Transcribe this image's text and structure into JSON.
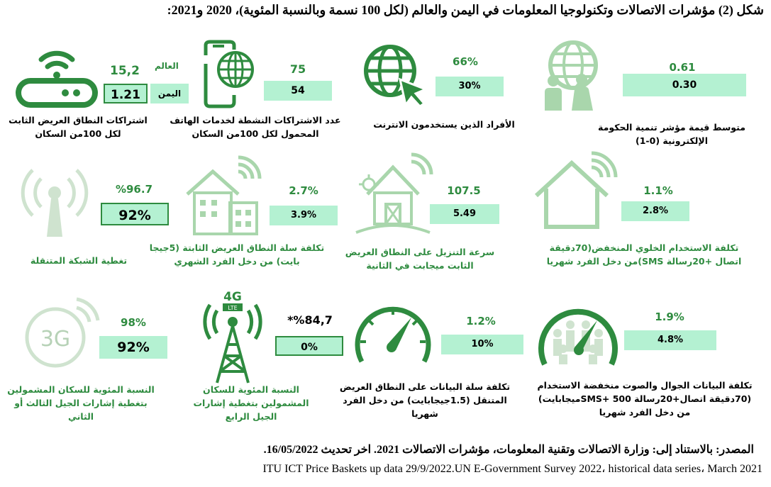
{
  "title": "شكل (2) مؤشرات الاتصالات وتكنولوجيا المعلومات في اليمن والعالم (لكل 100 نسمة وبالنسبة المئوية)، 2020 و2021:",
  "legend": {
    "world": "العالم",
    "yemen": "اليمن"
  },
  "indicators": [
    {
      "id": "fixed-broadband-subs",
      "world": "15,2",
      "yemen": "1.21",
      "caption": "اشتراكات النطاق العريض الثابت لكل 100من السكان",
      "icon": "router-icon"
    },
    {
      "id": "mobile-broadband-subs",
      "world": "75",
      "yemen": "54",
      "caption": "عدد الاشتراكات النشطة لخدمات الهاتف المحمول لكل 100من السكان",
      "icon": "smartphone-globe-icon"
    },
    {
      "id": "internet-users",
      "world": "66%",
      "yemen": "30%",
      "caption": "الأفراد الذين يستخدمون الانترنت",
      "icon": "globe-cursor-icon"
    },
    {
      "id": "egov-index",
      "world": "0.61",
      "yemen": "0.30",
      "caption": "متوسط قيمة مؤشر تنمية الحكومة الإلكترونية (0-1)",
      "icon": "globe-people-icon"
    },
    {
      "id": "mobile-coverage",
      "world": "%96.7",
      "yemen": "92%",
      "caption": "تغطية الشبكة المتنقلة",
      "icon": "antenna-icon"
    },
    {
      "id": "fixed-broadband-cost",
      "world": "2.7%",
      "yemen": "3.9%",
      "caption": "تكلفة سلة النطاق العريض الثابتة (5جيجا بايت) من دخل الفرد الشهري",
      "icon": "city-wifi-icon"
    },
    {
      "id": "download-speed",
      "world": "107.5",
      "yemen": "5.49",
      "caption": "سرعة التنزيل على النطاق العريض الثابت ميجابت في الثانية",
      "icon": "farmhouse-wifi-icon"
    },
    {
      "id": "low-mobile-cost",
      "world": "1.1%",
      "yemen": "2.8%",
      "caption": "تكلفة الاستخدام الخلوي المنخفض(70دقيقة اتصال +20رسالة SMS)من دخل الفرد شهريا",
      "icon": "house-wifi-icon"
    },
    {
      "id": "3g-coverage",
      "world": "98%",
      "yemen": "92%",
      "caption": "النسبة المئوية للسكان المشمولين بتغطية إشارات الجيل الثالث أو الثاني",
      "icon": "3g-icon",
      "icon_text": "3G"
    },
    {
      "id": "4g-coverage",
      "world": "*%84,7",
      "yemen": "0%",
      "caption": "النسبة المئوية للسكان المشمولين بتغطية إشارات الجيل الرابع",
      "icon": "4g-tower-icon",
      "icon_text": "4G",
      "icon_subtext": "LTE"
    },
    {
      "id": "mobile-data-cost",
      "world": "1.2%",
      "yemen": "10%",
      "caption": "تكلفة سلة البيانات على النطاق العريض المتنقل (1.5جيجابايت) من دخل الفرد شهريا",
      "icon": "speedometer-icon"
    },
    {
      "id": "data-voice-cost",
      "world": "1.9%",
      "yemen": "4.8%",
      "caption": "تكلفة البيانات الجوال والصوت منخفضة الاستخدام (70دقيقة اتصال+20رسالة SMS+ 500ميجابايت) من دخل الفرد شهريا",
      "icon": "crowd-gauge-icon"
    }
  ],
  "source": {
    "line1": "المصدر: بالاستناد إلى: وزارة الاتصالات وتقنية المعلومات، مؤشرات الاتصالات 2021. اخر تحديث 16/05/2022.",
    "line2": "ITU ICT Price Baskets up data 29/9/2022.UN E-Government Survey 2022، historical data series، March 2021"
  },
  "colors": {
    "accent": "#2e8b3f",
    "box_fill": "#b4f1d2",
    "pale": "#a9d6ac",
    "light_icon": "#cfe3cf"
  }
}
